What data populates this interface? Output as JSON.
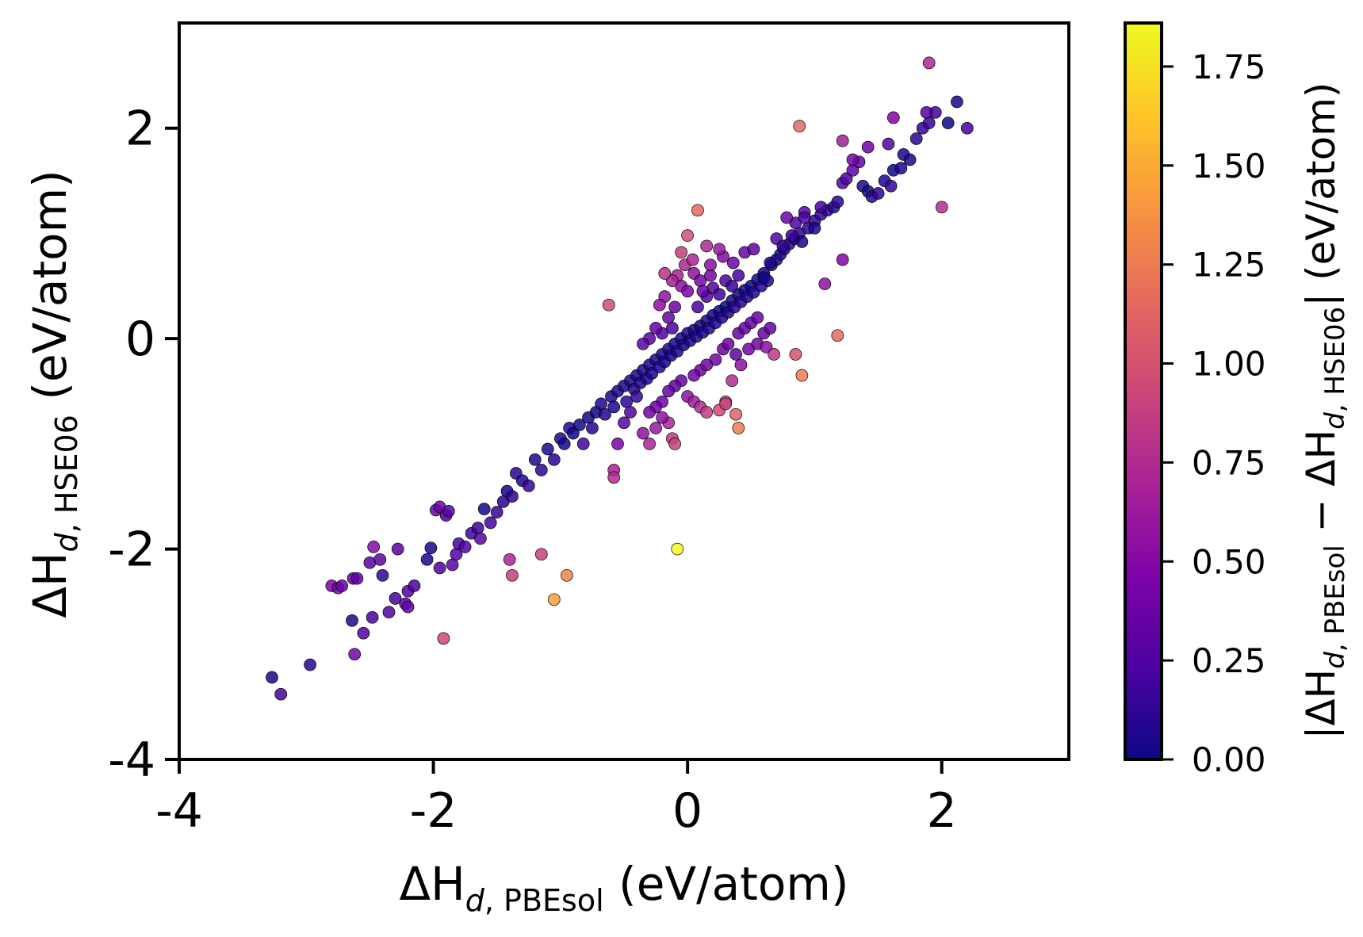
{
  "chart_data": {
    "type": "scatter",
    "title": "",
    "xlabel": {
      "prefix": "ΔH",
      "sub_italic": "d",
      "sub_text": "PBEsol",
      "suffix": " (eV/atom)"
    },
    "ylabel": {
      "prefix": "ΔH",
      "sub_italic": "d",
      "sub_text": "HSE06",
      "suffix": " (eV/atom)"
    },
    "colorbar_label": {
      "prefix": "|ΔH",
      "sub_italic_1": "d",
      "sub_text_1": "PBEsol",
      "middle": " − ΔH",
      "sub_italic_2": "d",
      "sub_text_2": "HSE06",
      "suffix": "| (eV/atom)"
    },
    "xlim": [
      -4,
      3
    ],
    "ylim": [
      -4,
      3
    ],
    "x_ticks": [
      -4,
      -2,
      0,
      2
    ],
    "x_tick_labels": [
      "-4",
      "-2",
      "0",
      "2"
    ],
    "y_ticks": [
      -4,
      -2,
      0,
      2
    ],
    "y_tick_labels": [
      "-4",
      "-2",
      "0",
      "2"
    ],
    "colorbar": {
      "colormap": "plasma",
      "range": [
        0,
        1.86
      ],
      "ticks": [
        0,
        0.25,
        0.5,
        0.75,
        1.0,
        1.25,
        1.5,
        1.75
      ],
      "tick_labels": [
        "0.00",
        "0.25",
        "0.50",
        "0.75",
        "1.00",
        "1.25",
        "1.50",
        "1.75"
      ]
    },
    "points": [
      [
        -3.27,
        -3.22
      ],
      [
        -3.2,
        -3.38
      ],
      [
        -2.97,
        -3.1
      ],
      [
        -2.62,
        -3.0
      ],
      [
        -2.64,
        -2.68
      ],
      [
        -2.55,
        -2.8
      ],
      [
        -2.48,
        -2.65
      ],
      [
        -2.35,
        -2.6
      ],
      [
        -2.3,
        -2.47
      ],
      [
        -2.22,
        -2.52
      ],
      [
        -2.2,
        -2.4
      ],
      [
        -2.15,
        -2.35
      ],
      [
        -2.8,
        -2.35
      ],
      [
        -2.75,
        -2.37
      ],
      [
        -2.72,
        -2.35
      ],
      [
        -2.63,
        -2.28
      ],
      [
        -2.5,
        -2.13
      ],
      [
        -2.47,
        -1.98
      ],
      [
        -2.4,
        -2.25
      ],
      [
        -2.28,
        -2.0
      ],
      [
        -2.05,
        -2.1
      ],
      [
        -2.02,
        -1.99
      ],
      [
        -1.98,
        -1.63
      ],
      [
        -1.95,
        -1.6
      ],
      [
        -1.9,
        -1.68
      ],
      [
        -1.88,
        -1.64
      ],
      [
        -1.85,
        -2.15
      ],
      [
        -1.82,
        -2.05
      ],
      [
        -1.8,
        -1.95
      ],
      [
        -1.75,
        -1.98
      ],
      [
        -1.7,
        -1.85
      ],
      [
        -1.65,
        -1.8
      ],
      [
        -1.63,
        -1.9
      ],
      [
        -1.6,
        -1.62
      ],
      [
        -1.55,
        -1.75
      ],
      [
        -1.5,
        -1.65
      ],
      [
        -1.45,
        -1.55
      ],
      [
        -1.42,
        -1.45
      ],
      [
        -1.38,
        -1.5
      ],
      [
        -1.35,
        -1.28
      ],
      [
        -1.3,
        -1.35
      ],
      [
        -1.25,
        -1.4
      ],
      [
        -1.2,
        -1.15
      ],
      [
        -1.15,
        -1.25
      ],
      [
        -1.1,
        -1.05
      ],
      [
        -1.05,
        -1.15
      ],
      [
        -1.0,
        -0.95
      ],
      [
        -0.97,
        -1.0
      ],
      [
        -0.93,
        -0.85
      ],
      [
        -0.9,
        -0.9
      ],
      [
        -0.85,
        -0.82
      ],
      [
        -0.82,
        -1.0
      ],
      [
        -0.78,
        -0.75
      ],
      [
        -0.75,
        -0.85
      ],
      [
        -0.72,
        -0.7
      ],
      [
        -0.68,
        -0.62
      ],
      [
        -0.65,
        -0.72
      ],
      [
        -0.6,
        -0.55
      ],
      [
        -0.58,
        -0.65
      ],
      [
        -0.55,
        -0.5
      ],
      [
        -0.5,
        -0.45
      ],
      [
        -0.48,
        -0.6
      ],
      [
        -0.45,
        -0.4
      ],
      [
        -0.42,
        -0.48
      ],
      [
        -0.4,
        -0.35
      ],
      [
        -0.37,
        -0.42
      ],
      [
        -0.35,
        -0.3
      ],
      [
        -0.32,
        -0.38
      ],
      [
        -0.3,
        -0.25
      ],
      [
        -0.28,
        -0.33
      ],
      [
        -0.25,
        -0.2
      ],
      [
        -0.22,
        -0.27
      ],
      [
        -0.2,
        -0.15
      ],
      [
        -0.18,
        -0.22
      ],
      [
        -0.15,
        -0.1
      ],
      [
        -0.13,
        -0.16
      ],
      [
        -0.1,
        -0.05
      ],
      [
        -0.08,
        -0.12
      ],
      [
        -0.05,
        0.0
      ],
      [
        -0.03,
        -0.06
      ],
      [
        0.0,
        0.05
      ],
      [
        0.02,
        -0.02
      ],
      [
        0.05,
        0.08
      ],
      [
        0.07,
        0.02
      ],
      [
        0.1,
        0.12
      ],
      [
        0.12,
        0.06
      ],
      [
        0.15,
        0.17
      ],
      [
        0.17,
        0.1
      ],
      [
        0.2,
        0.22
      ],
      [
        0.22,
        0.15
      ],
      [
        0.25,
        0.26
      ],
      [
        0.27,
        0.2
      ],
      [
        0.3,
        0.3
      ],
      [
        0.32,
        0.25
      ],
      [
        0.35,
        0.36
      ],
      [
        0.37,
        0.3
      ],
      [
        0.4,
        0.42
      ],
      [
        0.42,
        0.35
      ],
      [
        0.45,
        0.46
      ],
      [
        0.47,
        0.4
      ],
      [
        0.5,
        0.5
      ],
      [
        0.52,
        0.44
      ],
      [
        0.55,
        0.56
      ],
      [
        0.58,
        0.5
      ],
      [
        0.6,
        0.62
      ],
      [
        0.63,
        0.55
      ],
      [
        0.66,
        0.7
      ],
      [
        0.7,
        0.75
      ],
      [
        0.73,
        0.8
      ],
      [
        0.76,
        0.85
      ],
      [
        0.8,
        0.9
      ],
      [
        0.84,
        0.95
      ],
      [
        0.88,
        1.0
      ],
      [
        0.9,
        0.92
      ],
      [
        0.95,
        1.05
      ],
      [
        1.0,
        1.12
      ],
      [
        1.05,
        1.18
      ],
      [
        1.1,
        1.22
      ],
      [
        1.15,
        1.25
      ],
      [
        1.18,
        1.3
      ],
      [
        1.22,
        1.48
      ],
      [
        1.25,
        1.52
      ],
      [
        1.3,
        1.6
      ],
      [
        1.35,
        1.68
      ],
      [
        1.38,
        1.45
      ],
      [
        1.42,
        1.4
      ],
      [
        1.45,
        1.35
      ],
      [
        1.5,
        1.38
      ],
      [
        1.55,
        1.5
      ],
      [
        1.6,
        1.45
      ],
      [
        1.62,
        1.6
      ],
      [
        1.68,
        1.62
      ],
      [
        1.7,
        1.75
      ],
      [
        1.75,
        1.7
      ],
      [
        1.8,
        1.9
      ],
      [
        1.85,
        2.0
      ],
      [
        1.9,
        2.05
      ],
      [
        1.95,
        2.15
      ],
      [
        2.05,
        2.05
      ],
      [
        2.12,
        2.25
      ],
      [
        2.2,
        2.0
      ],
      [
        1.88,
        2.15
      ],
      [
        1.58,
        1.85
      ],
      [
        1.42,
        1.82
      ],
      [
        1.3,
        1.7
      ],
      [
        1.0,
        1.05
      ],
      [
        0.92,
        1.2
      ],
      [
        0.85,
        1.1
      ],
      [
        0.78,
        1.15
      ],
      [
        0.7,
        0.95
      ],
      [
        0.65,
        0.72
      ],
      [
        0.6,
        0.58
      ],
      [
        -0.1,
        0.3
      ],
      [
        -0.05,
        0.5
      ],
      [
        0.0,
        0.45
      ],
      [
        0.05,
        0.62
      ],
      [
        0.1,
        0.55
      ],
      [
        0.15,
        0.4
      ],
      [
        0.2,
        0.48
      ],
      [
        0.25,
        0.42
      ],
      [
        -0.15,
        0.2
      ],
      [
        -0.2,
        0.05
      ],
      [
        -0.25,
        0.1
      ],
      [
        -0.3,
        0.0
      ],
      [
        -0.35,
        -0.05
      ],
      [
        -0.12,
        0.1
      ],
      [
        0.08,
        0.3
      ],
      [
        0.12,
        0.45
      ],
      [
        0.18,
        0.6
      ],
      [
        0.3,
        0.55
      ],
      [
        0.35,
        0.5
      ],
      [
        0.4,
        0.6
      ],
      [
        0.22,
        -0.2
      ],
      [
        0.28,
        -0.1
      ],
      [
        0.32,
        -0.05
      ],
      [
        0.4,
        0.05
      ],
      [
        0.45,
        0.1
      ],
      [
        0.5,
        0.15
      ],
      [
        0.55,
        0.2
      ],
      [
        0.1,
        -0.3
      ],
      [
        0.15,
        -0.25
      ],
      [
        0.05,
        -0.35
      ],
      [
        -0.05,
        -0.4
      ],
      [
        -0.1,
        -0.45
      ],
      [
        -0.15,
        -0.5
      ],
      [
        0.0,
        -0.55
      ],
      [
        0.05,
        -0.6
      ],
      [
        -0.2,
        -0.6
      ],
      [
        -0.25,
        -0.65
      ],
      [
        -0.3,
        -0.7
      ],
      [
        0.1,
        -0.65
      ],
      [
        0.15,
        -0.7
      ],
      [
        -0.18,
        0.4
      ],
      [
        -0.22,
        0.32
      ],
      [
        -0.08,
        0.6
      ],
      [
        -0.02,
        0.7
      ],
      [
        0.04,
        0.75
      ],
      [
        0.18,
        0.7
      ],
      [
        0.28,
        0.78
      ],
      [
        0.36,
        0.72
      ],
      [
        0.45,
        0.82
      ],
      [
        0.52,
        0.85
      ],
      [
        -0.4,
        -0.55
      ],
      [
        -0.45,
        -0.7
      ],
      [
        -0.5,
        -0.8
      ],
      [
        -0.55,
        -1.0
      ],
      [
        -0.35,
        -0.9
      ],
      [
        -0.25,
        -0.85
      ],
      [
        -0.15,
        -0.8
      ],
      [
        -0.3,
        -1.0
      ],
      [
        -0.12,
        -0.95
      ],
      [
        -0.2,
        -0.75
      ],
      [
        0.3,
        -0.6
      ],
      [
        0.25,
        -0.68
      ],
      [
        0.35,
        -0.4
      ],
      [
        0.42,
        -0.25
      ],
      [
        0.48,
        -0.1
      ],
      [
        0.55,
        -0.05
      ],
      [
        0.6,
        0.05
      ],
      [
        0.65,
        0.1
      ],
      [
        0.62,
        -0.08
      ],
      [
        0.38,
        -0.15
      ],
      [
        -0.62,
        0.32
      ],
      [
        -0.58,
        -1.25
      ],
      [
        -0.58,
        -1.32
      ],
      [
        0.08,
        1.22
      ],
      [
        0.0,
        0.98
      ],
      [
        -0.05,
        0.82
      ],
      [
        0.15,
        0.88
      ],
      [
        0.25,
        0.85
      ],
      [
        -0.12,
        0.55
      ],
      [
        -0.18,
        0.62
      ],
      [
        0.75,
        0.88
      ],
      [
        0.82,
        0.98
      ],
      [
        0.92,
        1.15
      ],
      [
        1.08,
        0.52
      ],
      [
        1.22,
        0.75
      ],
      [
        1.05,
        1.25
      ],
      [
        0.68,
        -0.15
      ],
      [
        0.9,
        -0.35
      ],
      [
        1.18,
        0.03
      ],
      [
        0.85,
        -0.15
      ],
      [
        0.38,
        -0.72
      ],
      [
        0.4,
        -0.85
      ],
      [
        0.3,
        -0.62
      ],
      [
        -0.1,
        -1.0
      ],
      [
        -0.08,
        -2.0
      ],
      [
        -1.05,
        -2.48
      ],
      [
        -0.95,
        -2.25
      ],
      [
        -1.15,
        -2.05
      ],
      [
        -1.4,
        -2.1
      ],
      [
        -1.38,
        -2.25
      ],
      [
        -1.92,
        -2.85
      ],
      [
        1.9,
        2.62
      ],
      [
        0.88,
        2.02
      ],
      [
        2.0,
        1.25
      ],
      [
        1.62,
        2.1
      ],
      [
        1.22,
        1.88
      ],
      [
        -2.6,
        -2.28
      ],
      [
        -2.42,
        -2.1
      ],
      [
        -2.2,
        -2.55
      ],
      [
        -1.95,
        -2.18
      ]
    ],
    "point_errors": [
      0.05,
      0.2,
      0.1,
      0.4,
      0.05,
      0.25,
      0.2,
      0.25,
      0.2,
      0.3,
      0.25,
      0.22,
      0.45,
      0.4,
      0.38,
      0.35,
      0.3,
      0.5,
      0.12,
      0.3,
      0.05,
      0.05,
      0.35,
      0.38,
      0.22,
      0.26,
      0.3,
      0.25,
      0.2,
      0.25,
      0.18,
      0.16,
      0.3,
      0.03,
      0.2,
      0.15,
      0.1,
      0.03,
      0.12,
      0.1,
      0.05,
      0.15,
      0.05,
      0.1,
      0.05,
      0.1,
      0.05,
      0.03,
      0.08,
      0.02,
      0.03,
      0.18,
      0.03,
      0.1,
      0.02,
      0.06,
      0.07,
      0.05,
      0.07,
      0.05,
      0.05,
      0.12,
      0.05,
      0.06,
      0.05,
      0.05,
      0.05,
      0.06,
      0.05,
      0.05,
      0.05,
      0.05,
      0.05,
      0.04,
      0.05,
      0.03,
      0.05,
      0.04,
      0.05,
      0.03,
      0.05,
      0.04,
      0.03,
      0.05,
      0.02,
      0.06,
      0.02,
      0.07,
      0.02,
      0.07,
      0.01,
      0.07,
      0.0,
      0.07,
      0.01,
      0.07,
      0.02,
      0.07,
      0.01,
      0.07,
      0.0,
      0.08,
      0.01,
      0.08,
      0.02,
      0.08,
      0.04,
      0.05,
      0.07,
      0.09,
      0.1,
      0.11,
      0.12,
      0.02,
      0.1,
      0.12,
      0.13,
      0.12,
      0.1,
      0.12,
      0.26,
      0.27,
      0.3,
      0.33,
      0.07,
      0.02,
      0.1,
      0.12,
      0.05,
      0.15,
      0.02,
      0.06,
      0.05,
      0.05,
      0.1,
      0.15,
      0.15,
      0.2,
      0.0,
      0.03,
      0.2,
      0.27,
      0.27,
      0.4,
      0.4,
      0.05,
      0.28,
      0.25,
      0.37,
      0.25,
      0.07,
      0.02,
      0.4,
      0.55,
      0.45,
      0.57,
      0.45,
      0.25,
      0.28,
      0.17,
      0.35,
      0.25,
      0.35,
      0.3,
      0.3,
      0.22,
      0.22,
      0.33,
      0.42,
      0.25,
      0.15,
      0.2,
      0.42,
      0.38,
      0.37,
      0.35,
      0.35,
      0.35,
      0.35,
      0.4,
      0.4,
      0.4,
      0.35,
      0.35,
      0.35,
      0.55,
      0.65,
      0.4,
      0.4,
      0.4,
      0.75,
      0.85,
      0.58,
      0.54,
      0.68,
      0.72,
      0.71,
      0.52,
      0.5,
      0.36,
      0.37,
      0.33,
      0.15,
      0.25,
      0.3,
      0.45,
      0.55,
      0.6,
      0.7,
      0.7,
      0.83,
      0.55,
      0.9,
      0.93,
      0.75,
      0.55,
      0.43,
      0.38,
      0.35,
      0.35,
      0.55,
      0.3,
      0.95,
      0.67,
      0.74,
      1.14,
      0.98,
      0.87,
      0.73,
      0.6,
      0.67,
      0.8,
      0.13,
      0.16,
      0.23,
      0.56,
      0.47,
      0.2,
      0.83,
      1.25,
      1.15,
      1.0,
      1.1,
      1.25,
      0.92,
      0.9,
      1.92,
      1.43,
      1.3,
      0.9,
      0.7,
      0.87,
      0.93,
      0.72,
      1.14,
      0.75,
      0.48,
      0.66,
      0.32,
      0.32,
      0.35,
      0.23
    ]
  }
}
